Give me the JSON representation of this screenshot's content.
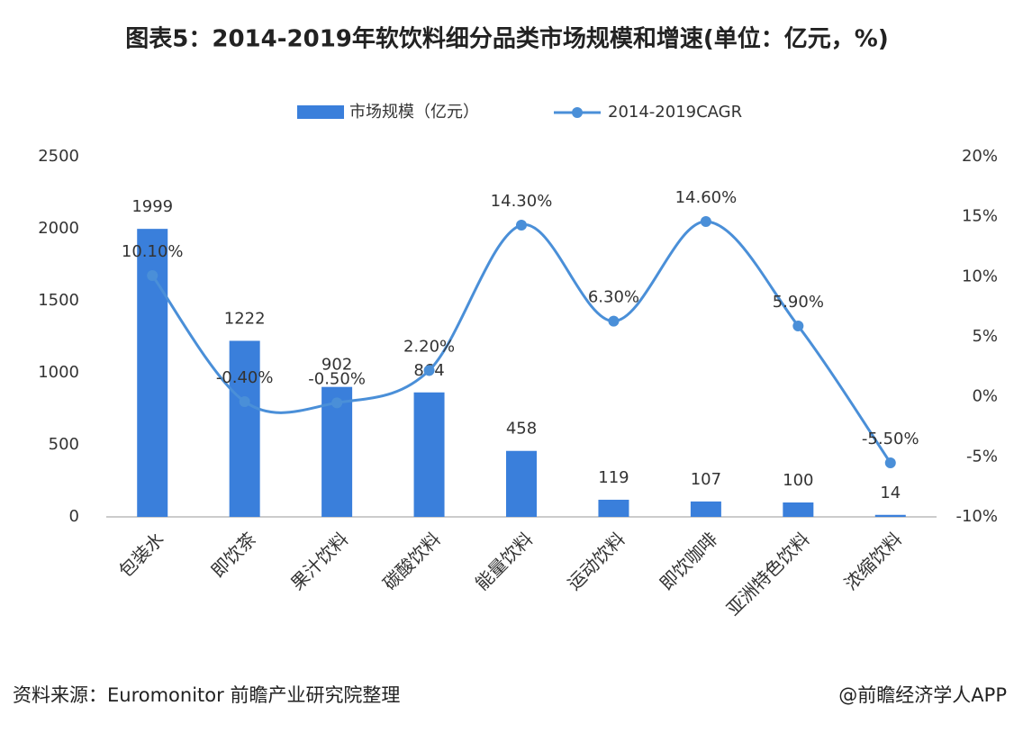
{
  "chart_data": {
    "type": "bar",
    "title": "图表5：2014-2019年软饮料细分品类市场规模和增速(单位：亿元，%)",
    "categories": [
      "包装水",
      "即饮茶",
      "果汁饮料",
      "碳酸饮料",
      "能量饮料",
      "运动饮料",
      "即饮咖啡",
      "亚洲特色饮料",
      "浓缩饮料"
    ],
    "series": [
      {
        "name": "市场规模（亿元）",
        "type": "bar",
        "color": "#3a7fdb",
        "values": [
          1999,
          1222,
          902,
          864,
          458,
          119,
          107,
          100,
          14
        ]
      },
      {
        "name": "2014-2019CAGR",
        "type": "line",
        "axis": "y2",
        "color": "#4a8fd8",
        "values": [
          10.1,
          -0.4,
          -0.5,
          2.2,
          14.3,
          6.3,
          14.6,
          5.9,
          -5.5
        ],
        "value_labels": [
          "10.10%",
          "-0.40%",
          "-0.50%",
          "2.20%",
          "14.30%",
          "6.30%",
          "14.60%",
          "5.90%",
          "-5.50%"
        ]
      }
    ],
    "ylim": [
      0,
      2500
    ],
    "yticks": [
      0,
      500,
      1000,
      1500,
      2000,
      2500
    ],
    "y2lim": [
      -10,
      20
    ],
    "y2ticks": [
      {
        "value": -10,
        "label": "-10%"
      },
      {
        "value": -5,
        "label": "-5%"
      },
      {
        "value": 0,
        "label": "0%"
      },
      {
        "value": 5,
        "label": "5%"
      },
      {
        "value": 10,
        "label": "10%"
      },
      {
        "value": 15,
        "label": "15%"
      },
      {
        "value": 20,
        "label": "20%"
      }
    ],
    "grid": false,
    "source": "资料来源：Euromonitor 前瞻产业研究院整理",
    "credit": "@前瞻经济学人APP"
  }
}
